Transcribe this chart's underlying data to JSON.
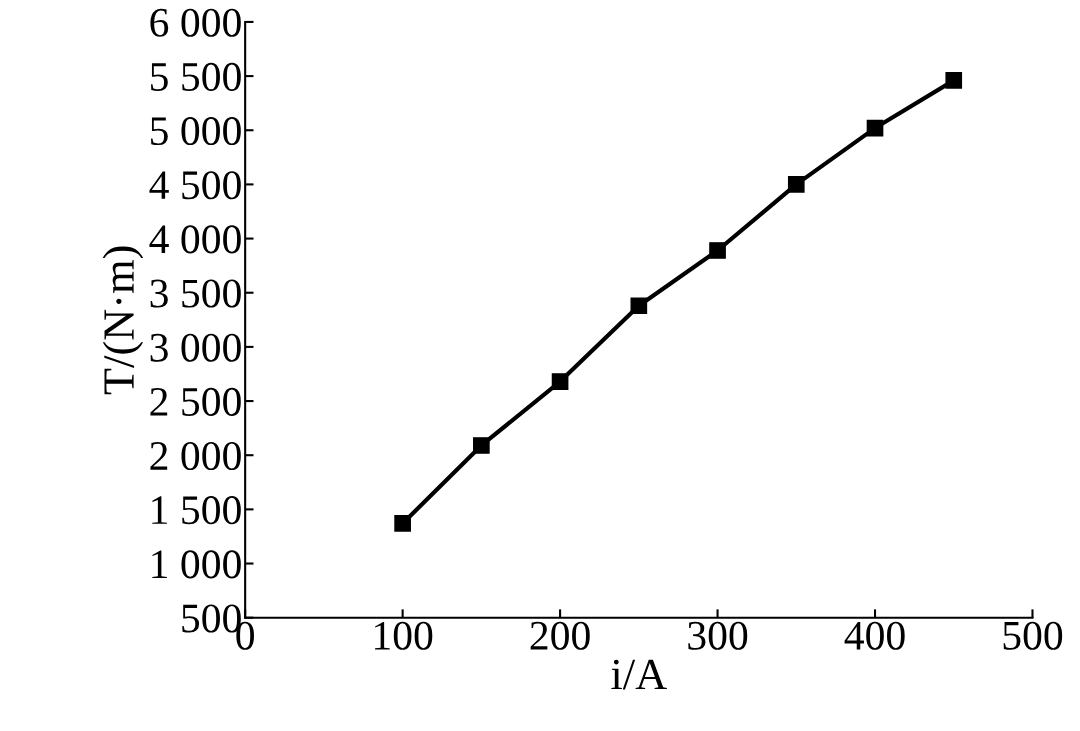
{
  "chart_data": {
    "type": "line",
    "xlabel": "i/A",
    "ylabel": "T/(N·m)",
    "x": [
      100,
      150,
      200,
      250,
      300,
      350,
      400,
      450
    ],
    "series": [
      {
        "color": "#000000",
        "values": [
          1370,
          2090,
          2680,
          3380,
          3890,
          4500,
          5020,
          5460
        ]
      }
    ],
    "marker": "square",
    "line_style": "solid",
    "xlim": [
      0,
      500
    ],
    "xticks": [
      0,
      100,
      200,
      300,
      400,
      500
    ],
    "ylim": [
      500,
      6000
    ],
    "yticks": [
      {
        "value": 500,
        "label": "500"
      },
      {
        "value": 1000,
        "label": "1 000"
      },
      {
        "value": 1500,
        "label": "1 500"
      },
      {
        "value": 2000,
        "label": "2 000"
      },
      {
        "value": 2500,
        "label": "2 500"
      },
      {
        "value": 3000,
        "label": "3 000"
      },
      {
        "value": 3500,
        "label": "3 500"
      },
      {
        "value": 4000,
        "label": "4 000"
      },
      {
        "value": 4500,
        "label": "4 500"
      },
      {
        "value": 5000,
        "label": "5 000"
      },
      {
        "value": 5500,
        "label": "5 500"
      },
      {
        "value": 6000,
        "label": "6 000"
      }
    ],
    "grid": false,
    "legend": false
  }
}
